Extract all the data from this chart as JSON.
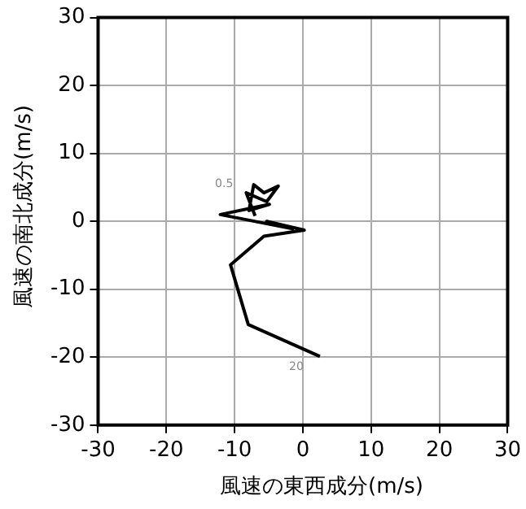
{
  "chart_data": {
    "type": "line",
    "xlabel": "風速の東西成分(m/s)",
    "ylabel": "風速の南北成分(m/s)",
    "series": [
      {
        "color": "#000000",
        "x": [
          2.5,
          -8.0,
          -10.6,
          -5.7,
          0.2,
          -5.3,
          -1.5,
          -12.1,
          -4.9,
          -7.9,
          -7.2,
          -5.7,
          -3.6,
          -5.3,
          -8.3,
          -7.0
        ],
        "values": [
          -19.9,
          -15.2,
          -6.4,
          -2.2,
          -1.3,
          0,
          -1.1,
          1.0,
          2.5,
          1.6,
          5.4,
          4.2,
          5.2,
          2.9,
          4.2,
          0.8
        ]
      }
    ],
    "xlim": [
      -30,
      30
    ],
    "ylim": [
      -30,
      30
    ],
    "xticks": [
      -30,
      -20,
      -10,
      0,
      10,
      20,
      30
    ],
    "yticks": [
      -30,
      -20,
      -10,
      0,
      10,
      20,
      30
    ],
    "grid": true,
    "marker": "none",
    "line_style": "solid",
    "annotations": [
      {
        "text": "20",
        "x": 2.5,
        "y": -19.9
      },
      {
        "text": "0.5",
        "x": -8.3,
        "y": 4.2
      }
    ]
  }
}
